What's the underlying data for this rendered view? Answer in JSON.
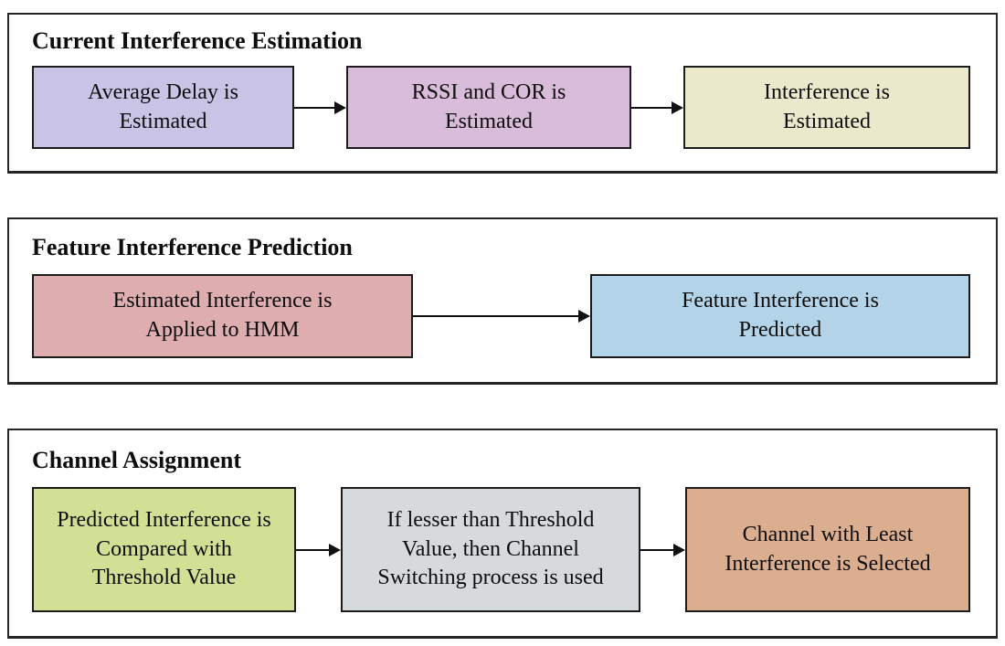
{
  "diagram": {
    "sections": [
      {
        "title": "Current Interference Estimation",
        "boxes": [
          {
            "label": "Average Delay is\nEstimated",
            "fill": "#c9c3e6"
          },
          {
            "label": "RSSI and COR is\nEstimated",
            "fill": "#d9bcd9"
          },
          {
            "label": "Interference is\nEstimated",
            "fill": "#ebe9cb"
          }
        ]
      },
      {
        "title": "Feature Interference Prediction",
        "boxes": [
          {
            "label": "Estimated Interference is\nApplied to HMM",
            "fill": "#ddadb0"
          },
          {
            "label": "Feature Interference is\nPredicted",
            "fill": "#b3d4e8"
          }
        ]
      },
      {
        "title": "Channel Assignment",
        "boxes": [
          {
            "label": "Predicted Interference is\nCompared with\nThreshold Value",
            "fill": "#d2e096"
          },
          {
            "label": "If lesser than Threshold\nValue, then Channel\nSwitching process is used",
            "fill": "#d6dadd"
          },
          {
            "label": "Channel with Least\nInterference is Selected",
            "fill": "#dcae90"
          }
        ]
      }
    ],
    "colors": {
      "box_border": "#1c1c1c",
      "section_border": "#262626",
      "arrow": "#111111",
      "text": "#0d0d0d"
    }
  }
}
